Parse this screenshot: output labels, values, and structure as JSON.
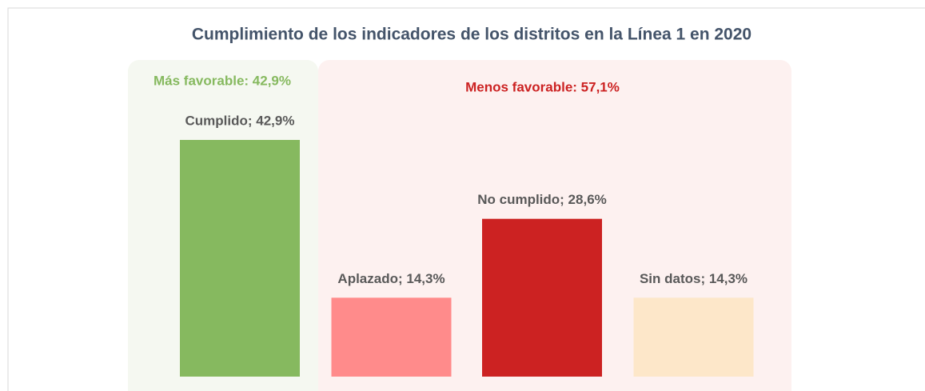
{
  "chart_data": {
    "type": "bar",
    "title": "Cumplimiento de los indicadores de los distritos en la Línea 1 en 2020",
    "values": [
      42.9,
      14.3,
      28.6,
      14.3
    ],
    "value_labels": [
      "Cumplido; 42,9%",
      "Aplazado; 14,3%",
      "No cumplido; 28,6%",
      "Sin datos; 14,3%"
    ],
    "colors": [
      "#86b95f",
      "#ff8b8b",
      "#cc2222",
      "#fde7c9"
    ],
    "groups": [
      {
        "label": "Más favorable: 42,9%",
        "color": "#86b95f",
        "background": "#f5f8f1",
        "bars": [
          0
        ]
      },
      {
        "label": "Menos favorable: 57,1%",
        "color": "#cc2222",
        "background": "#fdf1f0",
        "bars": [
          1,
          2,
          3
        ]
      }
    ]
  }
}
